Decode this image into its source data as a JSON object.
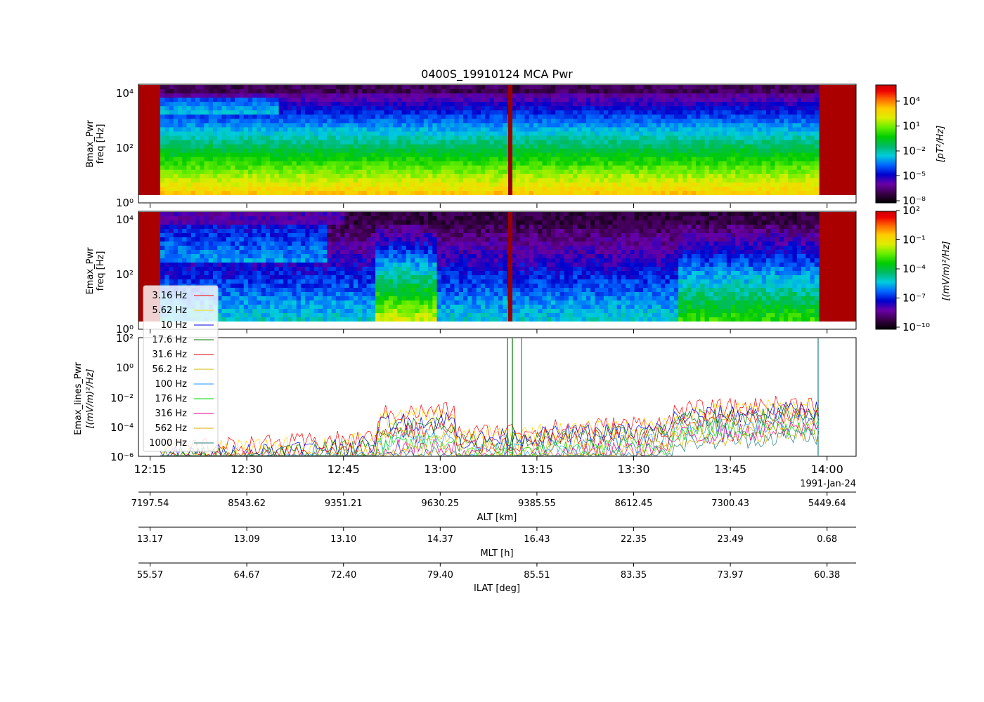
{
  "title": "0400S_19910124 MCA Pwr",
  "date_label": "1991-Jan-24",
  "time_ticks": [
    "12:15",
    "12:30",
    "12:45",
    "13:00",
    "13:15",
    "13:30",
    "13:45",
    "14:00"
  ],
  "panels": {
    "bmax": {
      "ylabel_line1": "Bmax_Pwr",
      "ylabel_line2": "freq [Hz]",
      "colorbar_label": "[pT²/Hz]",
      "colorbar_ticks": [
        "10⁴",
        "10¹",
        "10⁻²",
        "10⁻⁵",
        "10⁻⁸"
      ],
      "y_ticks": [
        "10⁴",
        "10²",
        "10⁰"
      ]
    },
    "emax": {
      "ylabel_line1": "Emax_Pwr",
      "ylabel_line2": "freq [Hz]",
      "colorbar_label": "[(mV/m)²/Hz]",
      "colorbar_ticks": [
        "10²",
        "10⁻¹",
        "10⁻⁴",
        "10⁻⁷",
        "10⁻¹⁰"
      ],
      "y_ticks": [
        "10⁴",
        "10²",
        "10⁰"
      ]
    },
    "lines": {
      "ylabel_line1": "Emax_lines_Pwr",
      "ylabel_line2": "[(mV/m)²/Hz]",
      "y_ticks": [
        "10²",
        "10⁰",
        "10⁻²",
        "10⁻⁴",
        "10⁻⁶"
      ]
    }
  },
  "chart_data": [
    {
      "type": "heatmap",
      "name": "Bmax_Pwr",
      "ylabel": "Bmax_Pwr freq [Hz]",
      "colorbar": "[pT^2/Hz]",
      "y_scale": "log",
      "ylim": [
        1,
        20000
      ],
      "color_scale": "log",
      "clim": [
        1e-08,
        1000000.0
      ],
      "x_range": [
        "12:15",
        "14:00"
      ],
      "colormap": "nipy_spectral"
    },
    {
      "type": "heatmap",
      "name": "Emax_Pwr",
      "ylabel": "Emax_Pwr freq [Hz]",
      "colorbar": "[(mV/m)^2/Hz]",
      "y_scale": "log",
      "ylim": [
        1,
        20000
      ],
      "color_scale": "log",
      "clim": [
        1e-10,
        100
      ],
      "x_range": [
        "12:15",
        "14:00"
      ],
      "colormap": "nipy_spectral"
    },
    {
      "type": "line",
      "name": "Emax_lines_Pwr",
      "ylabel": "Emax_lines_Pwr [(mV/m)^2/Hz]",
      "y_scale": "log",
      "ylim": [
        1e-06,
        100
      ],
      "x": [
        "12:15",
        "12:30",
        "12:45",
        "13:00",
        "13:15",
        "13:30",
        "13:45",
        "14:00"
      ],
      "legend_position": "left",
      "series": [
        {
          "name": "3.16 Hz",
          "color": "#ff0000"
        },
        {
          "name": "5.62 Hz",
          "color": "#ffd800"
        },
        {
          "name": "10 Hz",
          "color": "#0000dd"
        },
        {
          "name": "17.6 Hz",
          "color": "#007700"
        },
        {
          "name": "31.6 Hz",
          "color": "#dd0000"
        },
        {
          "name": "56.2 Hz",
          "color": "#ccbb00"
        },
        {
          "name": "100 Hz",
          "color": "#1e90ff"
        },
        {
          "name": "176 Hz",
          "color": "#00dd00"
        },
        {
          "name": "316 Hz",
          "color": "#dd0088"
        },
        {
          "name": "562 Hz",
          "color": "#ddaa00"
        },
        {
          "name": "1000 Hz",
          "color": "#208080"
        }
      ]
    }
  ],
  "ephemeris": {
    "alt": {
      "label": "ALT [km]",
      "values": [
        "7197.54",
        "8543.62",
        "9351.21",
        "9630.25",
        "9385.55",
        "8612.45",
        "7300.43",
        "5449.64"
      ]
    },
    "mlt": {
      "label": "MLT [h]",
      "values": [
        "13.17",
        "13.09",
        "13.10",
        "14.37",
        "16.43",
        "22.35",
        "23.49",
        "0.68"
      ]
    },
    "ilat": {
      "label": "ILAT [deg]",
      "values": [
        "55.57",
        "64.67",
        "72.40",
        "79.40",
        "85.51",
        "83.35",
        "73.97",
        "60.38"
      ]
    }
  }
}
